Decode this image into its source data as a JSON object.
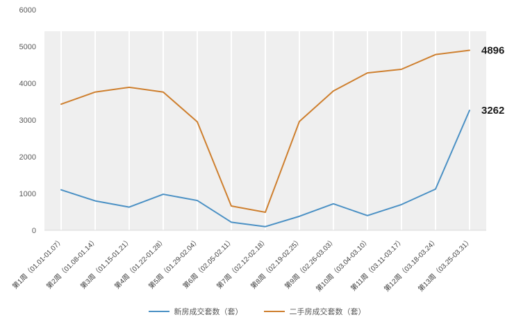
{
  "chart_data": {
    "type": "line",
    "title": "",
    "categories": [
      "第1周（01.01-01.07）",
      "第2周（01.08-01.14）",
      "第3周（01.15-01.21）",
      "第4周（01.22-01.28）",
      "第5周（01.29-02.04）",
      "第6周（02.05-02.11）",
      "第7周（02.12-02.18）",
      "第8周（02.19-02.25）",
      "第9周（02.26-03.03）",
      "第10周（03.04-03.10）",
      "第11周（03.11-03.17）",
      "第12周（03.18-03.24）",
      "第13周（03.25-03.31）"
    ],
    "series": [
      {
        "name": "新房成交套数（套）",
        "color": "#4a90c4",
        "values": [
          1100,
          800,
          630,
          980,
          810,
          220,
          100,
          380,
          720,
          400,
          700,
          1120,
          3262
        ],
        "end_label": "3262"
      },
      {
        "name": "二手房成交套数（套）",
        "color": "#ce7f2e",
        "values": [
          3430,
          3760,
          3890,
          3760,
          2950,
          660,
          490,
          2960,
          3790,
          4280,
          4380,
          4780,
          4896
        ],
        "end_label": "4896"
      }
    ],
    "ylim": [
      0,
      6000
    ],
    "yticks": [
      0,
      1000,
      2000,
      3000,
      4000,
      5000,
      6000
    ],
    "grid": "vertical-white-on-gray",
    "legend_position": "bottom",
    "plot_bg": "#efefef",
    "gridline_color": "#ffffff",
    "axis_tick_color": "#595959",
    "x_label_color": "#404040",
    "data_label_color": "#1a1a1a"
  }
}
